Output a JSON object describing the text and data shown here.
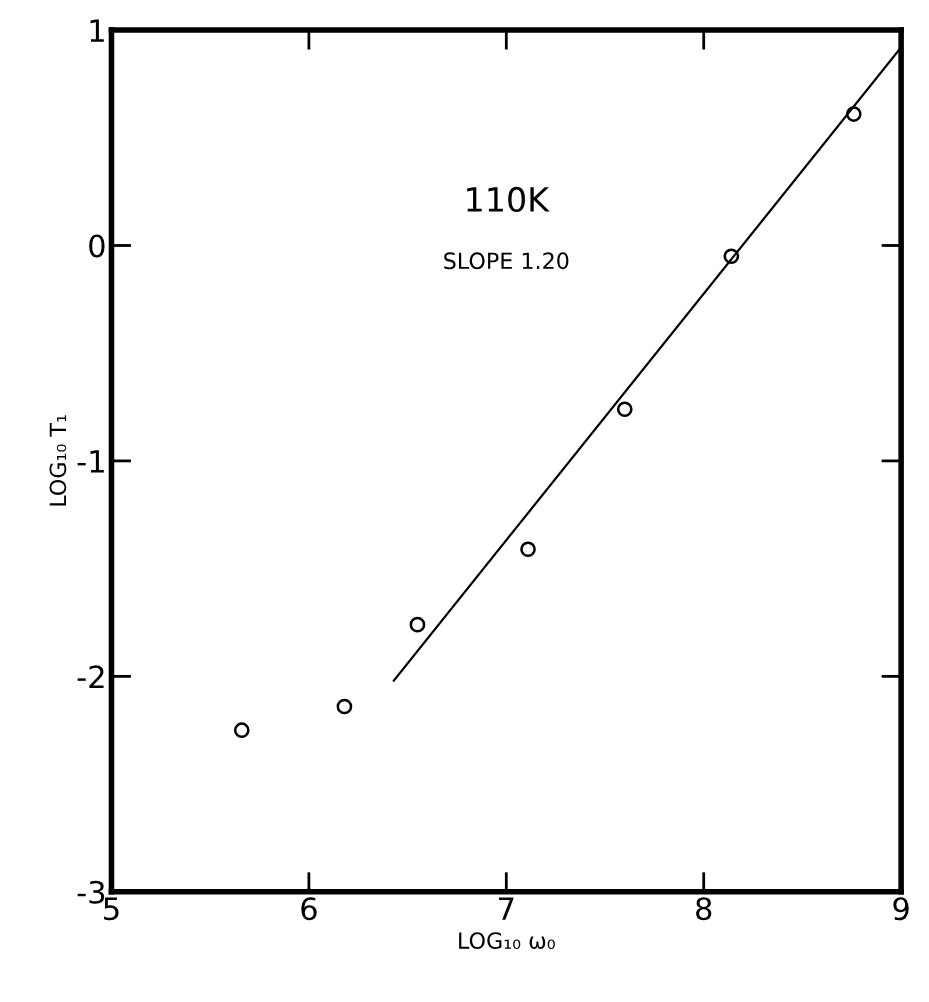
{
  "chart_data": {
    "type": "scatter",
    "xlabel": "LOG₁₀ ω₀",
    "ylabel": "LOG₁₀ T₁",
    "annotations": [
      "110K",
      "SLOPE 1.20"
    ],
    "series": [
      {
        "color": "#000000",
        "marker": "circle",
        "x": [
          5.66,
          6.18,
          6.55,
          7.11,
          7.6,
          8.14,
          8.76
        ],
        "values": [
          -2.25,
          -2.14,
          -1.76,
          -1.41,
          -0.76,
          -0.05,
          0.61
        ]
      },
      {
        "type": "line",
        "color": "#000000",
        "marker": "none",
        "line_style": "solid",
        "x": [
          6.43,
          9.0
        ],
        "values": [
          -2.02,
          0.92
        ]
      }
    ],
    "xlim": [
      5,
      9
    ],
    "ylim": [
      -3,
      1
    ],
    "xticks": [
      5,
      6,
      7,
      8,
      9
    ],
    "yticks": [
      {
        "value": -3,
        "label": "-3"
      },
      {
        "value": -2,
        "label": "-2"
      },
      {
        "value": -1,
        "label": "-1"
      },
      0,
      1
    ],
    "grid": false,
    "legend": false
  }
}
